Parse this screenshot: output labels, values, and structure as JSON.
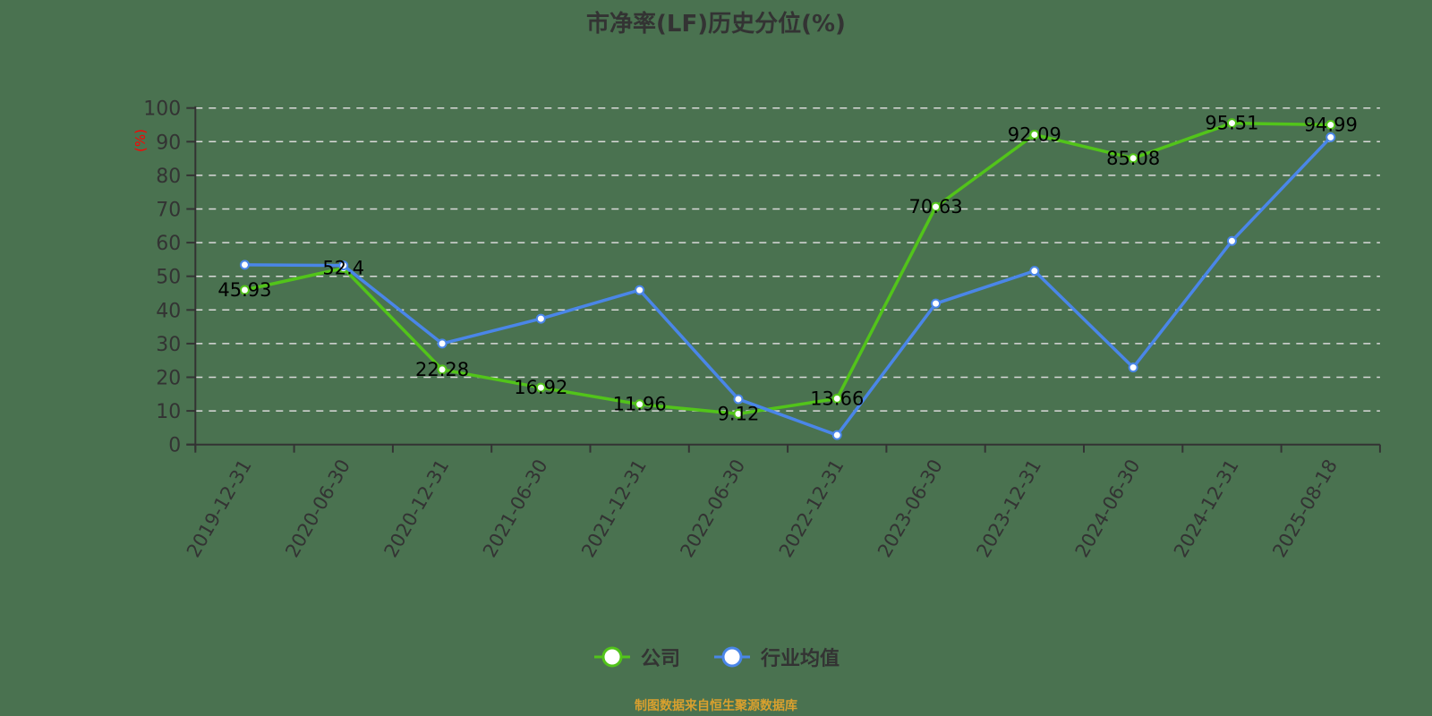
{
  "title": "市净率(LF)历史分位(%)",
  "y_axis_unit_label": "(%)",
  "legend": [
    {
      "label": "公司",
      "color": "#52c41a"
    },
    {
      "label": "行业均值",
      "color": "#4a86e8"
    }
  ],
  "footer": "制图数据来自恒生聚源数据库",
  "colors": {
    "background": "#4a7250",
    "axis": "#333333",
    "grid": "#d9d9d9",
    "unit_label": "#ff0000",
    "company": "#52c41a",
    "industry": "#4a86e8",
    "footer": "#d9a02e"
  },
  "chart_data": {
    "type": "line",
    "title": "市净率(LF)历史分位(%)",
    "xlabel": "",
    "ylabel": "(%)",
    "ylim": [
      0,
      100
    ],
    "yticks": [
      0,
      10,
      20,
      30,
      40,
      50,
      60,
      70,
      80,
      90,
      100
    ],
    "grid": true,
    "legend_position": "bottom",
    "categories": [
      "2019-12-31",
      "2020-06-30",
      "2020-12-31",
      "2021-06-30",
      "2021-12-31",
      "2022-06-30",
      "2022-12-31",
      "2023-06-30",
      "2023-12-31",
      "2024-06-30",
      "2024-12-31",
      "2025-08-18"
    ],
    "series": [
      {
        "name": "公司",
        "values": [
          45.93,
          52.4,
          22.28,
          16.92,
          11.96,
          9.12,
          13.66,
          70.63,
          92.09,
          85.08,
          95.51,
          94.99
        ],
        "labels_shown": true
      },
      {
        "name": "行业均值",
        "values": [
          53.4,
          53.2,
          30.0,
          37.4,
          45.9,
          13.5,
          2.8,
          41.9,
          51.6,
          22.9,
          60.5,
          91.3
        ],
        "labels_shown": false
      }
    ]
  }
}
